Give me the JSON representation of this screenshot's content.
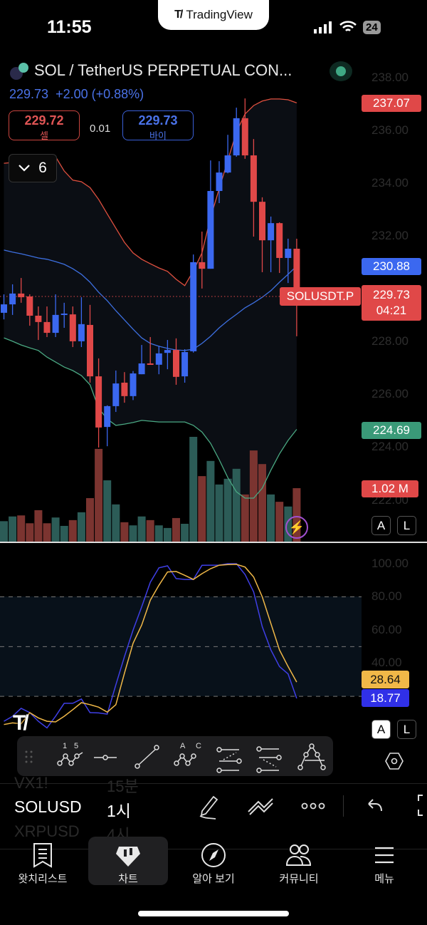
{
  "status_bar": {
    "time": "11:55",
    "app_pill": "TradingView",
    "battery": "24"
  },
  "header": {
    "title": "SOL / TetherUS PERPETUAL CON...",
    "last_price": "229.73",
    "change": "+2.00 (+0.88%)",
    "sell": {
      "price": "229.72",
      "label": "셀"
    },
    "spread": "0.01",
    "buy": {
      "price": "229.73",
      "label": "바이"
    },
    "collapse_count": "6",
    "market_status_color": "#3fa884"
  },
  "price_axis": {
    "ticks": [
      "238.00",
      "236.00",
      "234.00",
      "232.00",
      "228.00",
      "226.00",
      "224.00",
      "222.00"
    ]
  },
  "price_tags": {
    "bb_upper": "237.07",
    "bb_basis": "230.88",
    "symbol": "SOLUSDT.P",
    "last": "229.73",
    "countdown": "04:21",
    "bb_lower": "224.69",
    "volume": "1.02 M"
  },
  "scale_buttons": {
    "auto": "A",
    "log": "L"
  },
  "stoch_axis": {
    "ticks": [
      "100.00",
      "80.00",
      "60.00",
      "40.00"
    ]
  },
  "stoch_tags": {
    "d": "28.64",
    "k": "18.77"
  },
  "colors": {
    "up": "#3b68f0",
    "down": "#e04848",
    "vol_up": "#2c5c57",
    "vol_down": "#7b3430",
    "bb_upper": "#e0503f",
    "bb_basis": "#3d6fe0",
    "bb_lower": "#4aa882",
    "stoch_k": "#3f3fe6",
    "stoch_d": "#f0b848"
  },
  "chart_data": {
    "type": "candlestick",
    "symbol": "SOLUSDT.P",
    "ylim": [
      221.5,
      238.5
    ],
    "ohlc": [
      [
        229.11,
        229.81,
        228.86,
        229.43
      ],
      [
        229.43,
        230.19,
        229.03,
        229.84
      ],
      [
        229.84,
        230.43,
        229.49,
        229.7
      ],
      [
        229.73,
        229.81,
        228.62,
        229.0
      ],
      [
        229.0,
        229.35,
        228.08,
        228.76
      ],
      [
        228.76,
        229.35,
        228.19,
        228.35
      ],
      [
        228.35,
        229.81,
        228.19,
        229.03
      ],
      [
        229.03,
        229.49,
        228.54,
        229.08
      ],
      [
        229.05,
        229.35,
        227.81,
        228.03
      ],
      [
        228.03,
        229.7,
        227.81,
        228.68
      ],
      [
        228.65,
        229.41,
        226.46,
        226.7
      ],
      [
        226.7,
        227.38,
        224.0,
        224.76
      ],
      [
        224.78,
        225.6,
        224.05,
        225.57
      ],
      [
        225.57,
        226.92,
        225.35,
        226.43
      ],
      [
        226.46,
        226.86,
        225.7,
        225.95
      ],
      [
        225.95,
        226.9,
        225.8,
        226.81
      ],
      [
        226.78,
        227.89,
        226.78,
        227.19
      ],
      [
        227.19,
        228.19,
        227.14,
        227.14
      ],
      [
        227.14,
        227.86,
        226.78,
        227.57
      ],
      [
        227.59,
        228.08,
        226.97,
        227.7
      ],
      [
        227.7,
        228.14,
        226.38,
        226.68
      ],
      [
        226.7,
        227.73,
        226.46,
        227.62
      ],
      [
        227.65,
        231.32,
        227.6,
        231.03
      ],
      [
        231.03,
        232.19,
        230.03,
        230.78
      ],
      [
        230.78,
        234.89,
        230.78,
        233.73
      ],
      [
        233.73,
        234.86,
        233.27,
        234.43
      ],
      [
        234.43,
        235.86,
        234.4,
        235.08
      ],
      [
        235.08,
        236.89,
        235.03,
        236.49
      ],
      [
        236.49,
        237.24,
        234.95,
        235.08
      ],
      [
        235.08,
        235.7,
        232.0,
        233.32
      ],
      [
        233.32,
        233.49,
        230.65,
        231.86
      ],
      [
        231.86,
        232.76,
        230.65,
        232.51
      ],
      [
        232.51,
        232.54,
        230.62,
        231.19
      ],
      [
        231.19,
        231.92,
        230.24,
        231.54
      ],
      [
        231.54,
        231.92,
        228.22,
        229.73
      ]
    ],
    "volume_m": [
      0.39,
      0.48,
      0.5,
      0.35,
      0.6,
      0.35,
      0.46,
      0.3,
      0.41,
      0.56,
      0.83,
      1.77,
      1.17,
      0.71,
      0.37,
      0.31,
      0.48,
      0.41,
      0.31,
      0.26,
      0.45,
      0.34,
      2.0,
      1.25,
      1.54,
      1.09,
      1.2,
      1.39,
      0.9,
      1.74,
      1.48,
      0.9,
      0.76,
      0.67,
      1.02
    ],
    "bb_upper": [
      234.78,
      234.81,
      234.89,
      234.95,
      235.0,
      235.03,
      235.03,
      234.49,
      234.14,
      234.08,
      233.86,
      233.41,
      232.86,
      232.32,
      231.78,
      231.38,
      231.14,
      230.97,
      230.81,
      230.68,
      230.38,
      230.14,
      230.7,
      231.38,
      232.73,
      233.81,
      234.89,
      235.97,
      236.65,
      236.97,
      237.14,
      237.22,
      237.22,
      237.19,
      237.07
    ],
    "bb_basis": [
      231.49,
      231.41,
      231.35,
      231.27,
      231.19,
      231.14,
      231.05,
      230.95,
      230.78,
      230.57,
      230.27,
      229.89,
      229.57,
      229.19,
      228.84,
      228.49,
      228.16,
      227.95,
      227.84,
      227.76,
      227.7,
      227.68,
      227.73,
      227.95,
      228.22,
      228.54,
      228.81,
      229.05,
      229.3,
      229.49,
      229.7,
      229.95,
      230.27,
      230.57,
      230.88
    ],
    "bb_lower": [
      228.16,
      228.03,
      227.89,
      227.78,
      227.68,
      227.43,
      227.24,
      227.05,
      226.92,
      226.73,
      226.38,
      225.49,
      225.08,
      224.84,
      224.89,
      224.95,
      225.03,
      225.0,
      224.97,
      224.97,
      224.97,
      224.97,
      224.84,
      224.59,
      224.16,
      223.54,
      222.86,
      222.32,
      222.08,
      222.08,
      222.46,
      223.14,
      223.76,
      224.27,
      224.69
    ],
    "stoch": {
      "ylim": [
        0,
        100
      ],
      "bands": [
        80,
        50,
        20
      ],
      "k": [
        5,
        8,
        12.8,
        10.2,
        5,
        1,
        8,
        15.8,
        15.8,
        18.4,
        10.2,
        10,
        9.3,
        27,
        44,
        60,
        74,
        88.8,
        97.5,
        98.7,
        91,
        90.5,
        90.5,
        99,
        99.1,
        99.1,
        100,
        100,
        93.5,
        83,
        62,
        48,
        38,
        33.5,
        18.77
      ],
      "d": [
        3,
        4,
        3.5,
        10.2,
        7,
        5,
        4.6,
        8,
        12,
        16.2,
        15,
        13.5,
        10.5,
        15,
        34,
        52,
        63,
        78,
        87,
        95,
        95.3,
        93,
        90.5,
        94,
        97,
        99.1,
        99.5,
        99.6,
        98,
        92,
        80,
        64,
        48,
        38,
        28.64
      ]
    }
  },
  "drawing_toolbar": {
    "tools": [
      {
        "icon": "elliott-impulse-icon",
        "labels": [
          "1",
          "5"
        ]
      },
      {
        "icon": "horizontal-ray-icon"
      },
      {
        "icon": "trend-line-icon"
      },
      {
        "icon": "abc-pattern-icon",
        "labels": [
          "A",
          "C"
        ]
      },
      {
        "icon": "fib-retracement-icon"
      },
      {
        "icon": "fib-extension-icon"
      },
      {
        "icon": "head-shoulders-icon"
      }
    ]
  },
  "symbol_bar": {
    "prev_symbol": "VX1!",
    "prev_interval": "15분",
    "symbol": "SOLUSD",
    "interval": "1시",
    "next_symbol": "XRPUSD",
    "next_interval": "4시"
  },
  "tabbar": [
    {
      "label": "왓치리스트",
      "icon": "watchlist-icon"
    },
    {
      "label": "차트",
      "icon": "chart-icon",
      "active": true
    },
    {
      "label": "알아 보기",
      "icon": "compass-icon"
    },
    {
      "label": "커뮤니티",
      "icon": "community-icon"
    },
    {
      "label": "메뉴",
      "icon": "menu-icon"
    }
  ]
}
